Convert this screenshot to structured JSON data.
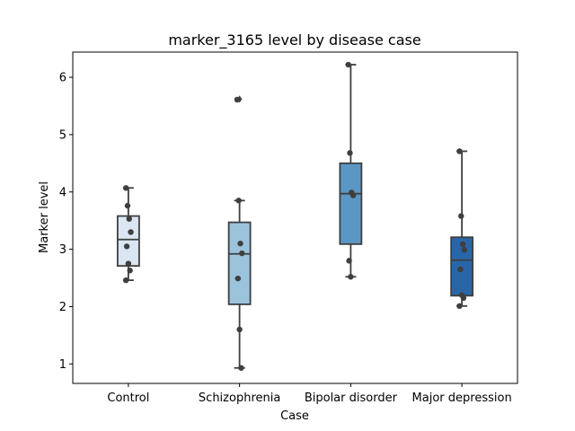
{
  "chart_data": {
    "type": "box",
    "title": "marker_3165 level by disease case",
    "xlabel": "Case",
    "ylabel": "Marker level",
    "categories": [
      "Control",
      "Schizophrenia",
      "Bipolar disorder",
      "Major depression"
    ],
    "ylim": [
      0.66,
      6.44
    ],
    "yticks": [
      1,
      2,
      3,
      4,
      5,
      6
    ],
    "yticks_labels": [
      "1",
      "2",
      "3",
      "4",
      "5",
      "6"
    ],
    "colors": [
      "#dae6f2",
      "#9bc3dc",
      "#5b97c5",
      "#2866a8"
    ],
    "boxes": [
      {
        "category": "Control",
        "whisker_low": 2.46,
        "q1": 2.71,
        "median": 3.17,
        "q3": 3.58,
        "whisker_high": 4.07,
        "outliers": [],
        "points": [
          4.07,
          3.76,
          3.53,
          3.3,
          3.05,
          2.75,
          2.63,
          2.46
        ]
      },
      {
        "category": "Schizophrenia",
        "whisker_low": 0.93,
        "q1": 2.04,
        "median": 2.92,
        "q3": 3.47,
        "whisker_high": 3.85,
        "outliers": [
          5.62
        ],
        "points": [
          5.61,
          3.85,
          3.1,
          2.93,
          2.49,
          1.6,
          0.93
        ]
      },
      {
        "category": "Bipolar disorder",
        "whisker_low": 2.52,
        "q1": 3.09,
        "median": 3.97,
        "q3": 4.5,
        "whisker_high": 6.22,
        "outliers": [],
        "points": [
          6.22,
          4.68,
          3.99,
          3.94,
          2.8,
          2.52
        ]
      },
      {
        "category": "Major depression",
        "whisker_low": 2.01,
        "q1": 2.19,
        "median": 2.81,
        "q3": 3.21,
        "whisker_high": 4.71,
        "outliers": [],
        "points": [
          4.71,
          3.58,
          3.09,
          2.99,
          2.65,
          2.2,
          2.15,
          2.01
        ]
      }
    ],
    "grid": false,
    "legend": "none"
  }
}
